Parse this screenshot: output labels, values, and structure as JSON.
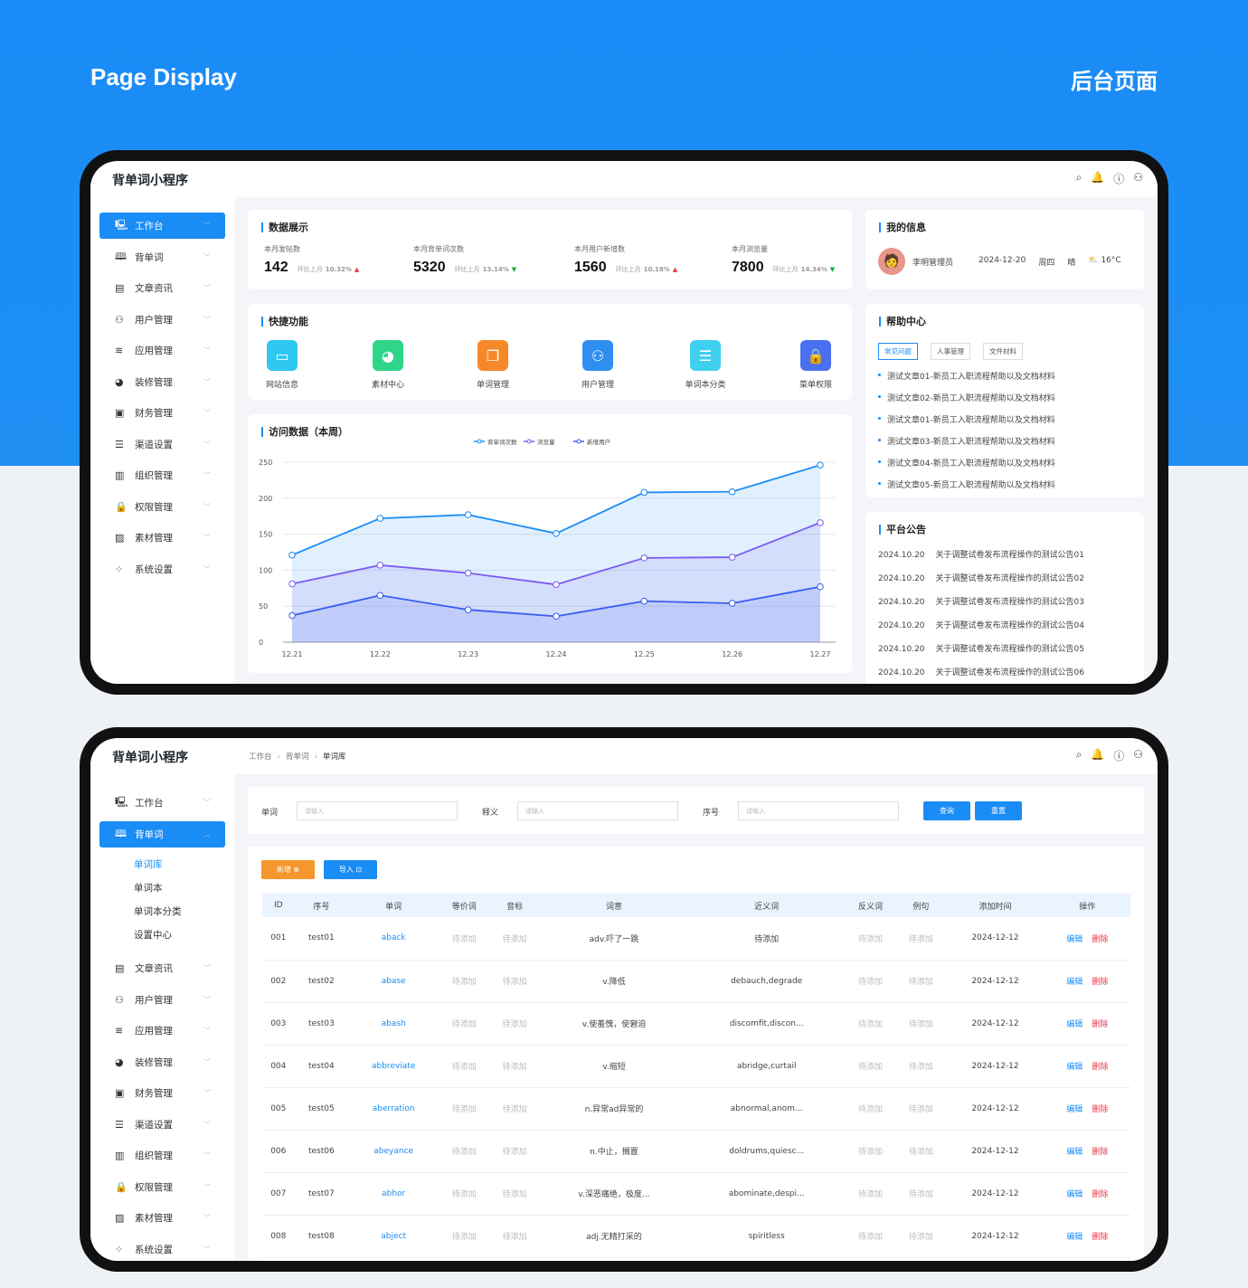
{
  "hero": {
    "left": "Page Display",
    "right": "后台页面"
  },
  "app_title": "背单词小程序",
  "header_icons": [
    "search-icon",
    "bell-icon",
    "help-icon",
    "user-icon"
  ],
  "sidebar1": [
    {
      "label": "工作台",
      "icon": "monitor-icon",
      "active": true
    },
    {
      "label": "背单词",
      "icon": "book-icon"
    },
    {
      "label": "文章资讯",
      "icon": "document-icon"
    },
    {
      "label": "用户管理",
      "icon": "user-icon"
    },
    {
      "label": "应用管理",
      "icon": "layers-icon"
    },
    {
      "label": "装修管理",
      "icon": "palette-icon"
    },
    {
      "label": "财务管理",
      "icon": "wallet-icon"
    },
    {
      "label": "渠道设置",
      "icon": "list-icon"
    },
    {
      "label": "组织管理",
      "icon": "building-icon"
    },
    {
      "label": "权限管理",
      "icon": "lock-icon"
    },
    {
      "label": "素材管理",
      "icon": "image-icon"
    },
    {
      "label": "系统设置",
      "icon": "grid-icon"
    }
  ],
  "dashboard": {
    "stats_title": "数据展示",
    "stats": [
      {
        "label": "本月发帖数",
        "value": "142",
        "cmp": "环比上月",
        "pct": "10.32%",
        "dir": "up"
      },
      {
        "label": "本月背单词次数",
        "value": "5320",
        "cmp": "环比上月",
        "pct": "13.14%",
        "dir": "dn"
      },
      {
        "label": "本月用户新增数",
        "value": "1560",
        "cmp": "环比上月",
        "pct": "10.18%",
        "dir": "up"
      },
      {
        "label": "本月浏览量",
        "value": "7800",
        "cmp": "环比上月",
        "pct": "14.34%",
        "dir": "dn"
      }
    ],
    "quick_title": "快捷功能",
    "quick": [
      {
        "label": "网站信息",
        "icon": "laptop-icon",
        "color": "#2ec8f0"
      },
      {
        "label": "素材中心",
        "icon": "palette-icon",
        "color": "#2fd689"
      },
      {
        "label": "单词管理",
        "icon": "files-icon",
        "color": "#f5892a"
      },
      {
        "label": "用户管理",
        "icon": "user-icon",
        "color": "#2f8ff0"
      },
      {
        "label": "单词本分类",
        "icon": "list-icon",
        "color": "#3fd0f0"
      },
      {
        "label": "菜单权限",
        "icon": "lock-icon",
        "color": "#4a6ff0"
      }
    ],
    "chart_title": "访问数据（本周）",
    "info_title": "我的信息",
    "user": {
      "name": "李明管理员",
      "date": "2024-12-20",
      "weekday": "周四",
      "weather": "晴",
      "temp": "16°C"
    },
    "help_title": "帮助中心",
    "help_tabs": [
      "常见问题",
      "人事管理",
      "文件材料"
    ],
    "help_items": [
      "测试文章01-新员工入职流程帮助以及文档材料",
      "测试文章02-新员工入职流程帮助以及文档材料",
      "测试文章01-新员工入职流程帮助以及文档材料",
      "测试文章03-新员工入职流程帮助以及文档材料",
      "测试文章04-新员工入职流程帮助以及文档材料",
      "测试文章05-新员工入职流程帮助以及文档材料"
    ],
    "notice_title": "平台公告",
    "notices": [
      {
        "date": "2024.10.20",
        "text": "关于调整试卷发布流程操作的测试公告01"
      },
      {
        "date": "2024.10.20",
        "text": "关于调整试卷发布流程操作的测试公告02"
      },
      {
        "date": "2024.10.20",
        "text": "关于调整试卷发布流程操作的测试公告03"
      },
      {
        "date": "2024.10.20",
        "text": "关于调整试卷发布流程操作的测试公告04"
      },
      {
        "date": "2024.10.20",
        "text": "关于调整试卷发布流程操作的测试公告05"
      },
      {
        "date": "2024.10.20",
        "text": "关于调整试卷发布流程操作的测试公告06"
      }
    ]
  },
  "chart_data": {
    "type": "area",
    "title": "访问数据（本周）",
    "x": [
      "12.21",
      "12.22",
      "12.23",
      "12.24",
      "12.25",
      "12.26",
      "12.27"
    ],
    "ylim": [
      0,
      250
    ],
    "yticks": [
      0,
      50,
      100,
      150,
      200,
      250
    ],
    "grid": true,
    "legend": "top-center",
    "series": [
      {
        "name": "背单词次数",
        "color": "#1a8cf5",
        "values": [
          121,
          172,
          177,
          151,
          208,
          209,
          246
        ]
      },
      {
        "name": "浏览量",
        "color": "#7b5cf0",
        "values": [
          81,
          107,
          96,
          80,
          117,
          118,
          166
        ]
      },
      {
        "name": "新增用户",
        "color": "#3a5cf0",
        "values": [
          37,
          65,
          45,
          36,
          57,
          54,
          77
        ]
      }
    ]
  },
  "sidebar2": [
    {
      "label": "工作台",
      "icon": "monitor-icon"
    },
    {
      "label": "背单词",
      "icon": "book-icon",
      "active": true,
      "open": true,
      "children": [
        {
          "label": "单词库",
          "current": true
        },
        {
          "label": "单词本"
        },
        {
          "label": "单词本分类"
        },
        {
          "label": "设置中心"
        }
      ]
    },
    {
      "label": "文章资讯",
      "icon": "document-icon"
    },
    {
      "label": "用户管理",
      "icon": "user-icon"
    },
    {
      "label": "应用管理",
      "icon": "layers-icon"
    },
    {
      "label": "装修管理",
      "icon": "palette-icon"
    },
    {
      "label": "财务管理",
      "icon": "wallet-icon"
    },
    {
      "label": "渠道设置",
      "icon": "list-icon"
    },
    {
      "label": "组织管理",
      "icon": "building-icon"
    },
    {
      "label": "权限管理",
      "icon": "lock-icon"
    },
    {
      "label": "素材管理",
      "icon": "image-icon"
    },
    {
      "label": "系统设置",
      "icon": "grid-icon"
    }
  ],
  "words": {
    "breadcrumb": [
      "工作台",
      "背单词",
      "单词库"
    ],
    "filters": [
      {
        "label": "单词",
        "placeholder": "请输入"
      },
      {
        "label": "释义",
        "placeholder": "请输入"
      },
      {
        "label": "序号",
        "placeholder": "请输入"
      }
    ],
    "query": "查询",
    "reset": "重置",
    "add": "新增",
    "import": "导入",
    "columns": [
      "ID",
      "序号",
      "单词",
      "等价词",
      "音标",
      "词意",
      "近义词",
      "反义词",
      "例句",
      "添加时间",
      "操作"
    ],
    "edit": "编辑",
    "delete": "删除",
    "rows": [
      [
        "001",
        "test01",
        "aback",
        "待添加",
        "待添加",
        "adv.吓了一跳",
        "待添加",
        "待添加",
        "待添加",
        "2024-12-12"
      ],
      [
        "002",
        "test02",
        "abase",
        "待添加",
        "待添加",
        "v.降低",
        "debauch,degrade",
        "待添加",
        "待添加",
        "2024-12-12"
      ],
      [
        "003",
        "test03",
        "abash",
        "待添加",
        "待添加",
        "v.使羞愧，使窘迫",
        "discomfit,discon...",
        "待添加",
        "待添加",
        "2024-12-12"
      ],
      [
        "004",
        "test04",
        "abbreviate",
        "待添加",
        "待添加",
        "v.缩短",
        "abridge,curtail",
        "待添加",
        "待添加",
        "2024-12-12"
      ],
      [
        "005",
        "test05",
        "aberration",
        "待添加",
        "待添加",
        "n.异常ad异常的",
        "abnormal,anom...",
        "待添加",
        "待添加",
        "2024-12-12"
      ],
      [
        "006",
        "test06",
        "abeyance",
        "待添加",
        "待添加",
        "n.中止，搁置",
        "doldrums,quiesc...",
        "待添加",
        "待添加",
        "2024-12-12"
      ],
      [
        "007",
        "test07",
        "abhor",
        "待添加",
        "待添加",
        "v.深恶痛绝，极度...",
        "abominate,despi...",
        "待添加",
        "待添加",
        "2024-12-12"
      ],
      [
        "008",
        "test08",
        "abject",
        "待添加",
        "待添加",
        "adj.无精打采的",
        "spiritless",
        "待添加",
        "待添加",
        "2024-12-12"
      ]
    ]
  }
}
